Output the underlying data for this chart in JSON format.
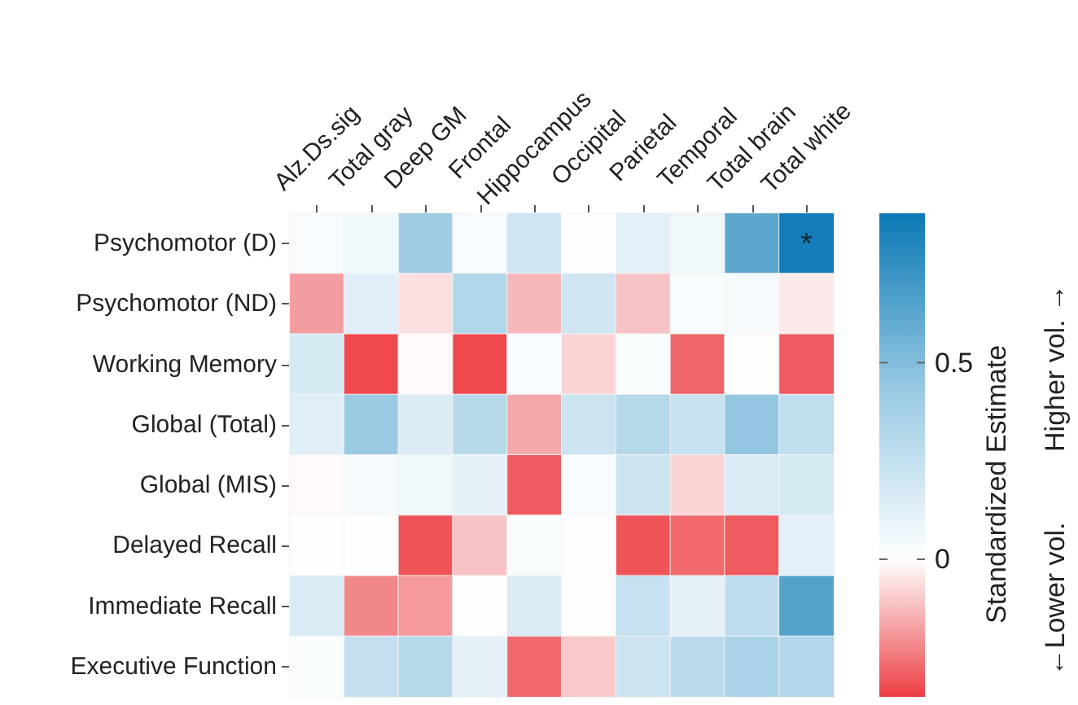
{
  "chart_data": {
    "type": "heatmap",
    "categories": [
      "Alz.Ds.sig",
      "Total gray",
      "Deep GM",
      "Frontal",
      "Hippocampus",
      "Occipital",
      "Parietal",
      "Temporal",
      "Total brain",
      "Total white"
    ],
    "y_categories": [
      "Psychomotor (D)",
      "Psychomotor (ND)",
      "Working Memory",
      "Global (Total)",
      "Global (MIS)",
      "Delayed Recall",
      "Immediate Recall",
      "Executive Function"
    ],
    "cells": [
      [
        0.03,
        0.06,
        0.4,
        0.03,
        0.2,
        0,
        0.12,
        0.07,
        0.62,
        0.85
      ],
      [
        -0.18,
        0.13,
        -0.06,
        0.33,
        -0.13,
        0.2,
        -0.11,
        0.03,
        0.04,
        -0.04
      ],
      [
        0.17,
        -0.33,
        -0.01,
        -0.33,
        0.03,
        -0.08,
        0.02,
        -0.28,
        0,
        -0.3
      ],
      [
        0.13,
        0.42,
        0.15,
        0.3,
        -0.16,
        0.22,
        0.31,
        0.24,
        0.45,
        0.26
      ],
      [
        -0.01,
        0.04,
        0.07,
        0.1,
        -0.3,
        0.03,
        0.22,
        -0.08,
        0.16,
        0.17
      ],
      [
        0,
        0,
        -0.31,
        -0.11,
        0.02,
        0,
        -0.31,
        -0.27,
        -0.3,
        0.11
      ],
      [
        0.16,
        -0.22,
        -0.19,
        0,
        0.15,
        0,
        0.24,
        0.1,
        0.27,
        0.65
      ],
      [
        0.02,
        0.25,
        0.31,
        0.1,
        -0.27,
        -0.1,
        0.22,
        0.28,
        0.36,
        0.32
      ]
    ],
    "clim": [
      -0.35,
      0.88
    ],
    "cticks": [
      0,
      0.5
    ],
    "clabel": "Standardized Estimate",
    "annotations": [
      "*",
      "←Lower vol.",
      "Higher vol. →"
    ]
  }
}
